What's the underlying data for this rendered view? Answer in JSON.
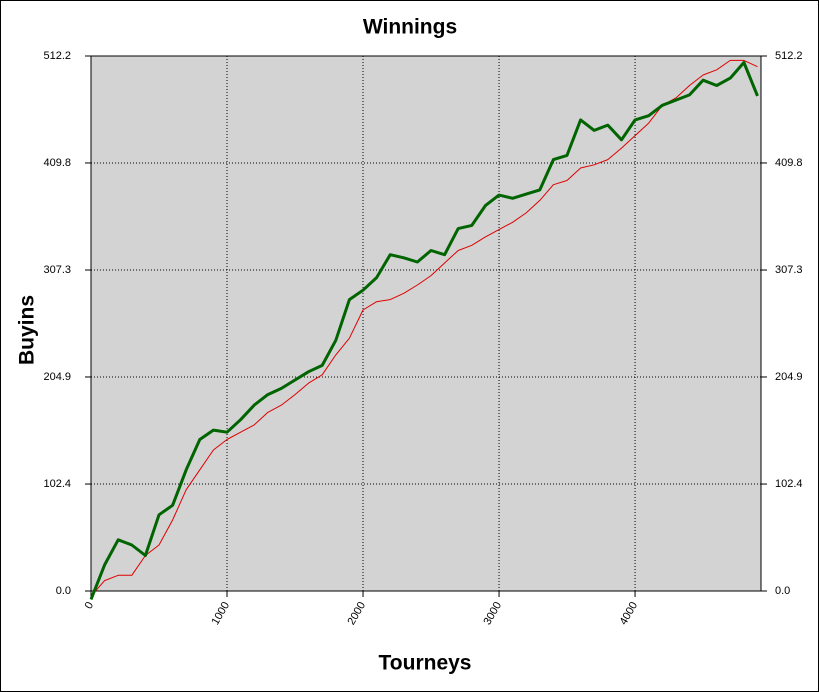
{
  "chart_data": {
    "type": "line",
    "title": "Winnings",
    "xlabel": "Tourneys",
    "ylabel": "Buyins",
    "x": [
      0,
      100,
      200,
      300,
      400,
      500,
      600,
      700,
      800,
      900,
      1000,
      1100,
      1200,
      1300,
      1400,
      1500,
      1600,
      1700,
      1800,
      1900,
      2000,
      2100,
      2200,
      2300,
      2400,
      2500,
      2600,
      2700,
      2800,
      2900,
      3000,
      3100,
      3200,
      3300,
      3400,
      3500,
      3600,
      3700,
      3800,
      3900,
      4000,
      4100,
      4200,
      4300,
      4400,
      4500,
      4600,
      4700,
      4800,
      4900
    ],
    "series": [
      {
        "color": "#e00000",
        "width": 1,
        "values": [
          -5,
          10,
          15,
          15,
          34,
          44,
          68,
          97,
          116,
          135,
          145,
          152,
          159,
          171,
          178,
          188,
          199,
          207,
          226,
          242,
          269,
          277,
          279,
          285,
          293,
          302,
          314,
          326,
          331,
          339,
          346,
          353,
          362,
          374,
          389,
          393,
          405,
          408,
          413,
          424,
          436,
          448,
          465,
          472,
          484,
          494,
          499,
          508,
          508,
          502
        ]
      },
      {
        "color": "#006400",
        "width": 3,
        "values": [
          -8,
          25,
          49,
          44,
          34,
          73,
          82,
          116,
          145,
          154,
          152,
          164,
          178,
          188,
          194,
          202,
          210,
          216,
          240,
          279,
          288,
          300,
          322,
          319,
          315,
          326,
          322,
          347,
          350,
          369,
          379,
          376,
          380,
          384,
          413,
          417,
          451,
          441,
          446,
          432,
          451,
          455,
          465,
          470,
          475,
          489,
          484,
          491,
          506,
          474
        ]
      }
    ],
    "xlim": [
      0,
      4926
    ],
    "xticks": [
      0,
      1000,
      2000,
      3000,
      4000
    ],
    "ylim": [
      0,
      512.2
    ],
    "yticks": [
      {
        "value": 0,
        "label": "0.0"
      },
      102.4,
      204.9,
      307.3,
      409.8,
      512.2
    ],
    "grid": true
  }
}
